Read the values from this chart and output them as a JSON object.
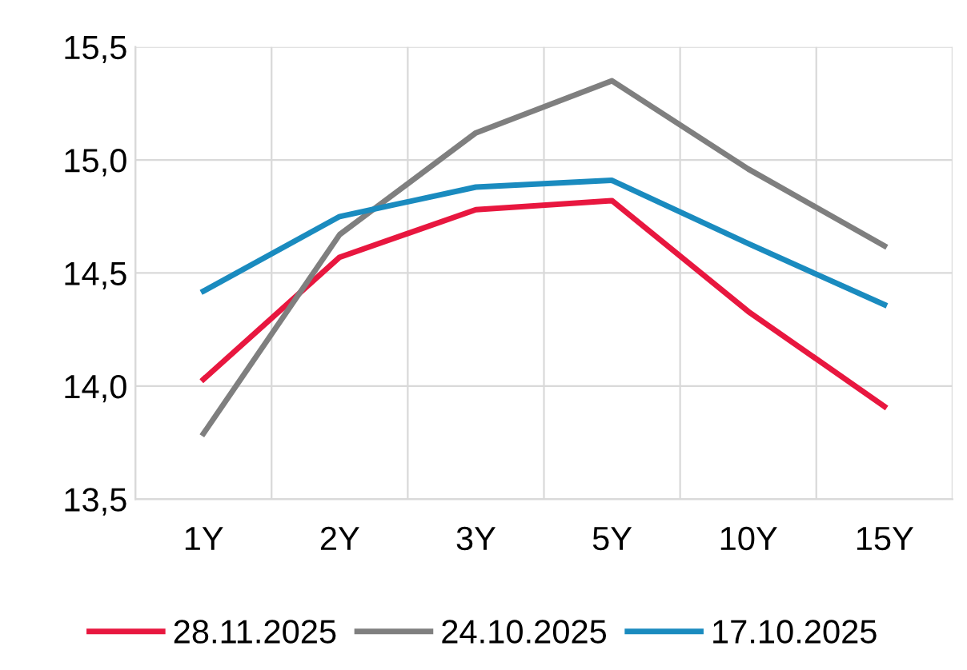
{
  "chart_data": {
    "type": "line",
    "categories": [
      "1Y",
      "2Y",
      "3Y",
      "5Y",
      "10Y",
      "15Y"
    ],
    "series": [
      {
        "name": "28.11.2025",
        "color": "#e8173f",
        "values": [
          14.03,
          14.57,
          14.78,
          14.82,
          14.33,
          13.91
        ]
      },
      {
        "name": "24.10.2025",
        "color": "#7f7f7f",
        "values": [
          13.79,
          14.67,
          15.12,
          15.35,
          14.96,
          14.62
        ]
      },
      {
        "name": "17.10.2025",
        "color": "#1a8bbf",
        "values": [
          14.42,
          14.75,
          14.88,
          14.91,
          14.63,
          14.36
        ]
      }
    ],
    "ylim": [
      13.5,
      15.5
    ],
    "yticks": [
      {
        "value": 13.5,
        "label": "13,5"
      },
      {
        "value": 14.0,
        "label": "14,0"
      },
      {
        "value": 14.5,
        "label": "14,5"
      },
      {
        "value": 15.0,
        "label": "15,0"
      },
      {
        "value": 15.5,
        "label": "15,5"
      }
    ],
    "grid": true,
    "legend": "bottom",
    "marker": "none",
    "line_style": "solid"
  }
}
